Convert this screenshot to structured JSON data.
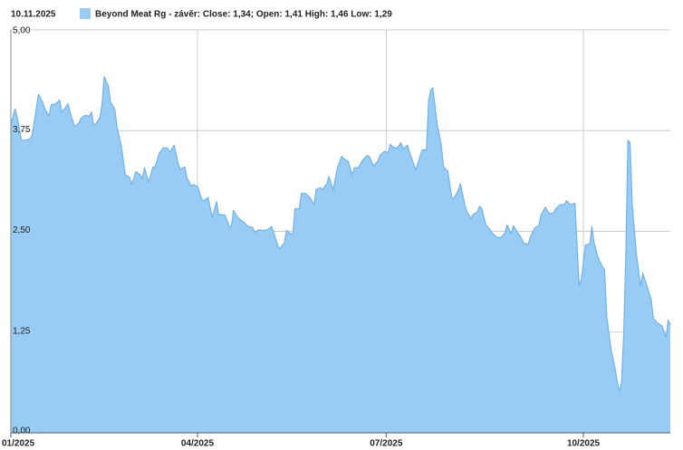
{
  "chart_data": {
    "type": "area",
    "title": "10.11.2025",
    "xlim": [
      2,
      313
    ],
    "xticks": [
      {
        "value": 2,
        "label": "01/2025"
      },
      {
        "value": 90,
        "label": "04/2025"
      },
      {
        "value": 179,
        "label": "07/2025"
      },
      {
        "value": 272,
        "label": "10/2025"
      }
    ],
    "ylim": [
      0,
      5
    ],
    "yticks": [
      {
        "value": 0,
        "label": "0,00"
      },
      {
        "value": 1.25,
        "label": "1,25"
      },
      {
        "value": 2.5,
        "label": "2,50"
      },
      {
        "value": 3.75,
        "label": "3,75"
      },
      {
        "value": 5,
        "label": "5,00"
      }
    ],
    "grid": true,
    "series": [
      {
        "name": "Beyond Meat Rg - závěr: Close: 1,34; Open: 1,41 High: 1,46 Low: 1,29",
        "color": "#99ccf5",
        "line_color": "#6fb2ea",
        "x": [
          2,
          4,
          5,
          7,
          9,
          11,
          12,
          13,
          15,
          17,
          18,
          20,
          21,
          23,
          25,
          26,
          28,
          29,
          30,
          32,
          34,
          35,
          37,
          39,
          40,
          41,
          42,
          44,
          45,
          46,
          48,
          49,
          51,
          52,
          54,
          56,
          58,
          59,
          61,
          63,
          64,
          65,
          67,
          69,
          70,
          72,
          74,
          76,
          77,
          79,
          81,
          82,
          84,
          85,
          87,
          88,
          90,
          92,
          93,
          95,
          97,
          99,
          100,
          101,
          103,
          105,
          106,
          107,
          109,
          111,
          112,
          114,
          116,
          117,
          119,
          121,
          123,
          124,
          125,
          126,
          128,
          129,
          131,
          132,
          134,
          135,
          136,
          138,
          139,
          141,
          143,
          145,
          146,
          148,
          149,
          151,
          152,
          154,
          156,
          158,
          159,
          161,
          163,
          164,
          166,
          168,
          170,
          171,
          173,
          175,
          176,
          178,
          180,
          181,
          182,
          184,
          186,
          187,
          189,
          190,
          193,
          194,
          196,
          198,
          199,
          200,
          201,
          203,
          205,
          206,
          208,
          210,
          211,
          213,
          214,
          216,
          217,
          219,
          220,
          222,
          223,
          224,
          226,
          228,
          229,
          231,
          233,
          235,
          236,
          238,
          239,
          241,
          242,
          244,
          246,
          247,
          249,
          251,
          252,
          254,
          256,
          258,
          259,
          261,
          263,
          264,
          266,
          268,
          270,
          271,
          273,
          275,
          276,
          277,
          279,
          281,
          282,
          283,
          285,
          287,
          288,
          289,
          290,
          291,
          292,
          293,
          294,
          295,
          297,
          299,
          300,
          302,
          304,
          305,
          307,
          309,
          311,
          312,
          313
        ],
        "values": [
          3.83,
          4.02,
          3.91,
          3.63,
          3.63,
          3.65,
          3.69,
          3.85,
          4.2,
          4.1,
          4.02,
          3.93,
          4.07,
          4.08,
          4.13,
          3.98,
          4.04,
          4.08,
          3.97,
          3.8,
          3.84,
          3.9,
          3.94,
          3.93,
          3.98,
          3.83,
          3.83,
          3.91,
          4.08,
          4.42,
          4.3,
          4.1,
          4.02,
          3.8,
          3.57,
          3.2,
          3.17,
          3.08,
          3.24,
          3.2,
          3.15,
          3.29,
          3.11,
          3.3,
          3.3,
          3.47,
          3.54,
          3.53,
          3.48,
          3.57,
          3.33,
          3.27,
          3.3,
          3.17,
          3.06,
          3.08,
          3.06,
          2.9,
          2.88,
          2.92,
          2.67,
          2.87,
          2.7,
          2.71,
          2.7,
          2.56,
          2.56,
          2.76,
          2.67,
          2.63,
          2.61,
          2.56,
          2.55,
          2.49,
          2.52,
          2.51,
          2.52,
          2.54,
          2.56,
          2.48,
          2.31,
          2.29,
          2.36,
          2.51,
          2.47,
          2.47,
          2.78,
          2.78,
          2.97,
          2.97,
          2.92,
          2.83,
          3.02,
          3.04,
          3.02,
          3.09,
          3.18,
          3.01,
          3.29,
          3.43,
          3.4,
          3.37,
          3.2,
          3.29,
          3.29,
          3.39,
          3.44,
          3.43,
          3.31,
          3.37,
          3.44,
          3.49,
          3.48,
          3.58,
          3.55,
          3.53,
          3.6,
          3.52,
          3.57,
          3.48,
          3.26,
          3.35,
          3.51,
          3.51,
          4.12,
          4.25,
          4.28,
          3.83,
          3.57,
          3.3,
          3.25,
          2.91,
          2.91,
          3.01,
          3.09,
          2.84,
          2.75,
          2.66,
          2.71,
          2.74,
          2.81,
          2.79,
          2.58,
          2.52,
          2.48,
          2.43,
          2.42,
          2.48,
          2.58,
          2.47,
          2.57,
          2.48,
          2.45,
          2.35,
          2.34,
          2.43,
          2.54,
          2.57,
          2.7,
          2.8,
          2.72,
          2.73,
          2.78,
          2.83,
          2.83,
          2.88,
          2.83,
          2.85,
          1.83,
          1.9,
          2.33,
          2.34,
          2.56,
          2.36,
          2.17,
          2.06,
          2.02,
          1.45,
          1.04,
          0.79,
          0.63,
          0.51,
          0.63,
          1.21,
          2.18,
          3.63,
          3.6,
          2.84,
          2.22,
          1.82,
          1.98,
          1.82,
          1.65,
          1.42,
          1.36,
          1.33,
          1.19,
          1.4,
          1.34
        ]
      }
    ]
  }
}
